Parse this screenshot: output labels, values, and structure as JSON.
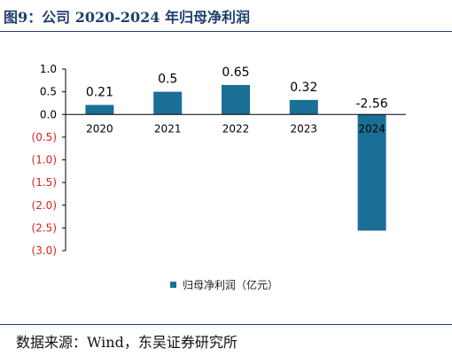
{
  "figure": {
    "title": "图9：公司 2020-2024 年归母净利润",
    "source": "数据来源：Wind，东吴证券研究所"
  },
  "chart_data": {
    "type": "bar",
    "categories": [
      "2020",
      "2021",
      "2022",
      "2023",
      "2024"
    ],
    "series": [
      {
        "name": "归母净利润（亿元）",
        "values": [
          0.21,
          0.5,
          0.65,
          0.32,
          -2.56
        ]
      }
    ],
    "data_labels": [
      "0.21",
      "0.5",
      "0.65",
      "0.32",
      "-2.56"
    ],
    "y_ticks": [
      "1.0",
      "0.5",
      "0.0",
      "(0.5)",
      "(1.0)",
      "(1.5)",
      "(2.0)",
      "(2.5)",
      "(3.0)"
    ],
    "ylim": [
      -3.0,
      1.0
    ],
    "grid": false,
    "legend_position": "bottom",
    "colors": {
      "bar": "#1a6f96",
      "negative_tick": "#e02020",
      "positive_tick": "#000000"
    }
  }
}
